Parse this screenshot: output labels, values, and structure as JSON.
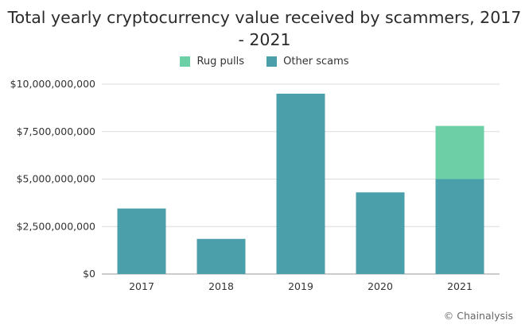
{
  "chart_data": {
    "type": "bar",
    "stacked": true,
    "title": "Total yearly cryptocurrency value received by scammers, 2017 - 2021",
    "categories": [
      "2017",
      "2018",
      "2019",
      "2020",
      "2021"
    ],
    "series": [
      {
        "name": "Other scams",
        "color": "#4a9fab",
        "values": [
          3450000000,
          1850000000,
          9500000000,
          4300000000,
          5000000000
        ]
      },
      {
        "name": "Rug pulls",
        "color": "#6ccfa6",
        "values": [
          0,
          0,
          0,
          0,
          2800000000
        ]
      }
    ],
    "ylim": [
      0,
      10000000000
    ],
    "yticks": [
      0,
      2500000000,
      5000000000,
      7500000000,
      10000000000
    ],
    "ytick_labels": [
      "$0",
      "$2,500,000,000",
      "$5,000,000,000",
      "$7,500,000,000",
      "$10,000,000,000"
    ],
    "legend": {
      "position": "top",
      "entries": [
        "Rug pulls",
        "Other scams"
      ]
    },
    "grid": "horizontal"
  },
  "title_lines": [
    "Total yearly cryptocurrency value received by scammers, 2017",
    "- 2021"
  ],
  "credit": "© Chainalysis"
}
